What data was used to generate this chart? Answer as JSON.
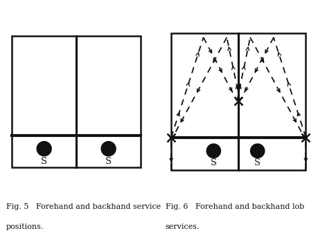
{
  "fig5_caption_line1": "Fig. 5   Forehand and backhand service",
  "fig5_caption_line2": "positions.",
  "fig6_caption_line1": "Fig. 6   Forehand and backhand lob",
  "fig6_caption_line2": "services.",
  "line_color": "#111111",
  "background_color": "#ffffff",
  "font_size": 8.0
}
